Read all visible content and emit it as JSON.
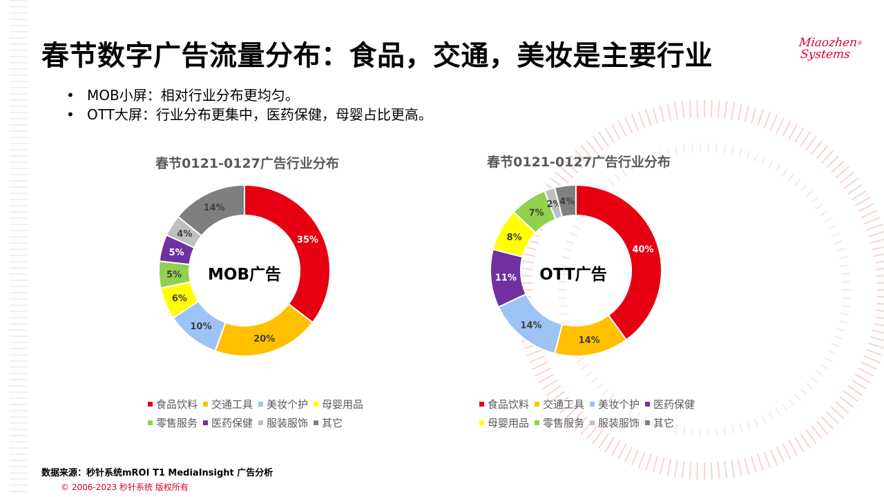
{
  "header": {
    "title": "春节数字广告流量分布：食品，交通，美妆是主要行业",
    "logo_line1": "Miaozhen",
    "logo_line2": "Systems"
  },
  "bullets": [
    "MOB小屏：相对行业分布更均匀。",
    "OTT大屏：行业分布更集中，医药保健，母婴占比更高。"
  ],
  "colors": {
    "食品饮料": "#e60012",
    "交通工具": "#ffc000",
    "美妆个护": "#9dc3f5",
    "母婴用品": "#ffff00",
    "零售服务": "#92d050",
    "医药保健": "#7030a0",
    "服装服饰": "#bfbfbf",
    "其它": "#7f7f7f"
  },
  "chart_data": [
    {
      "type": "pie",
      "title": "春节0121-0127广告行业分布",
      "center_label": "MOB广告",
      "slices": [
        {
          "label": "食品饮料",
          "value": 35,
          "text": "35%"
        },
        {
          "label": "交通工具",
          "value": 20,
          "text": "20%"
        },
        {
          "label": "美妆个护",
          "value": 10,
          "text": "10%"
        },
        {
          "label": "母婴用品",
          "value": 6,
          "text": "6%"
        },
        {
          "label": "零售服务",
          "value": 5,
          "text": "5%"
        },
        {
          "label": "医药保健",
          "value": 5,
          "text": "5%"
        },
        {
          "label": "服装服饰",
          "value": 4,
          "text": "4%"
        },
        {
          "label": "其它",
          "value": 14,
          "text": "14%"
        }
      ],
      "legend": [
        [
          "食品饮料",
          "交通工具",
          "美妆个护",
          "母婴用品"
        ],
        [
          "零售服务",
          "医药保健",
          "服装服饰",
          "其它"
        ]
      ]
    },
    {
      "type": "pie",
      "title": "春节0121-0127广告行业分布",
      "center_label": "OTT广告",
      "slices": [
        {
          "label": "食品饮料",
          "value": 40,
          "text": "40%"
        },
        {
          "label": "交通工具",
          "value": 14,
          "text": "14%"
        },
        {
          "label": "美妆个护",
          "value": 14,
          "text": "14%"
        },
        {
          "label": "医药保健",
          "value": 11,
          "text": "11%"
        },
        {
          "label": "母婴用品",
          "value": 8,
          "text": "8%"
        },
        {
          "label": "零售服务",
          "value": 7,
          "text": "7%"
        },
        {
          "label": "服装服饰",
          "value": 2,
          "text": "2%"
        },
        {
          "label": "其它",
          "value": 4,
          "text": "4%"
        }
      ],
      "legend": [
        [
          "食品饮料",
          "交通工具",
          "美妆个护",
          "医药保健"
        ],
        [
          "母婴用品",
          "零售服务",
          "服装服饰",
          "其它"
        ]
      ]
    }
  ],
  "footer": {
    "source": "数据来源：秒针系统mROI T1 MediaInsight   广告分析",
    "copyright": "© 2006-2023 秒针系统 版权所有"
  }
}
